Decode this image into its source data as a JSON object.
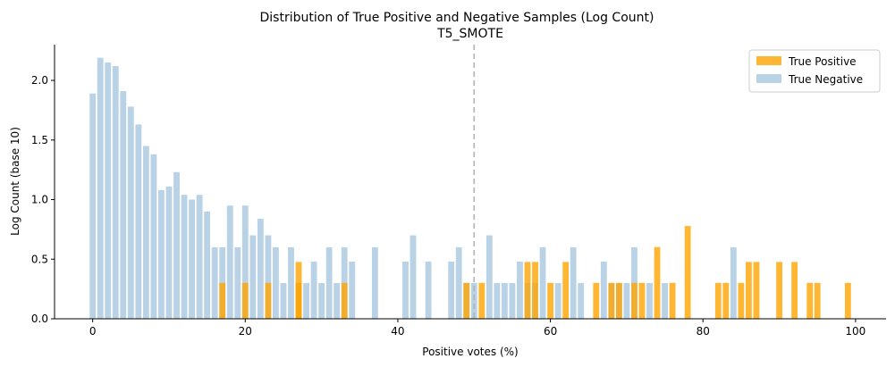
{
  "chart_data": {
    "type": "bar",
    "title": "Distribution of True Positive and Negative Samples (Log Count)",
    "subtitle": "T5_SMOTE",
    "xlabel": "Positive votes (%)",
    "ylabel": "Log Count (base 10)",
    "xlim": [
      -5,
      104
    ],
    "ylim": [
      0,
      2.3
    ],
    "xticks": [
      0,
      20,
      40,
      60,
      80,
      100
    ],
    "yticks": [
      0.0,
      0.5,
      1.0,
      1.5,
      2.0
    ],
    "ytick_labels": [
      "0.0",
      "0.5",
      "1.0",
      "1.5",
      "2.0"
    ],
    "threshold_x": 50,
    "legend_position": "top-right",
    "series": [
      {
        "name": "True Positive",
        "color": "#FFA500",
        "alpha": 0.8,
        "points": [
          {
            "x": 17,
            "y": 0.301
          },
          {
            "x": 20,
            "y": 0.301
          },
          {
            "x": 23,
            "y": 0.301
          },
          {
            "x": 27,
            "y": 0.477
          },
          {
            "x": 27,
            "y": 0.301
          },
          {
            "x": 33,
            "y": 0.301
          },
          {
            "x": 49,
            "y": 0.301
          },
          {
            "x": 51,
            "y": 0.301
          },
          {
            "x": 57,
            "y": 0.477
          },
          {
            "x": 58,
            "y": 0.477
          },
          {
            "x": 60,
            "y": 0.301
          },
          {
            "x": 62,
            "y": 0.477
          },
          {
            "x": 66,
            "y": 0.301
          },
          {
            "x": 68,
            "y": 0.301
          },
          {
            "x": 69,
            "y": 0.301
          },
          {
            "x": 71,
            "y": 0.301
          },
          {
            "x": 72,
            "y": 0.301
          },
          {
            "x": 74,
            "y": 0.602
          },
          {
            "x": 76,
            "y": 0.301
          },
          {
            "x": 78,
            "y": 0.778
          },
          {
            "x": 82,
            "y": 0.301
          },
          {
            "x": 83,
            "y": 0.301
          },
          {
            "x": 85,
            "y": 0.301
          },
          {
            "x": 86,
            "y": 0.477
          },
          {
            "x": 87,
            "y": 0.477
          },
          {
            "x": 90,
            "y": 0.477
          },
          {
            "x": 92,
            "y": 0.477
          },
          {
            "x": 94,
            "y": 0.301
          },
          {
            "x": 95,
            "y": 0.301
          },
          {
            "x": 99,
            "y": 0.301
          }
        ]
      },
      {
        "name": "True Negative",
        "color": "#A7C7E0",
        "alpha": 0.8,
        "points": [
          {
            "x": 0,
            "y": 1.89
          },
          {
            "x": 1,
            "y": 2.19
          },
          {
            "x": 2,
            "y": 2.15
          },
          {
            "x": 3,
            "y": 2.12
          },
          {
            "x": 4,
            "y": 1.91
          },
          {
            "x": 5,
            "y": 1.78
          },
          {
            "x": 6,
            "y": 1.63
          },
          {
            "x": 7,
            "y": 1.45
          },
          {
            "x": 8,
            "y": 1.38
          },
          {
            "x": 9,
            "y": 1.08
          },
          {
            "x": 10,
            "y": 1.11
          },
          {
            "x": 11,
            "y": 1.23
          },
          {
            "x": 12,
            "y": 1.04
          },
          {
            "x": 13,
            "y": 1.0
          },
          {
            "x": 14,
            "y": 1.04
          },
          {
            "x": 15,
            "y": 0.9
          },
          {
            "x": 16,
            "y": 0.6
          },
          {
            "x": 17,
            "y": 0.6
          },
          {
            "x": 18,
            "y": 0.95
          },
          {
            "x": 19,
            "y": 0.6
          },
          {
            "x": 20,
            "y": 0.95
          },
          {
            "x": 21,
            "y": 0.7
          },
          {
            "x": 22,
            "y": 0.84
          },
          {
            "x": 23,
            "y": 0.7
          },
          {
            "x": 24,
            "y": 0.6
          },
          {
            "x": 25,
            "y": 0.3
          },
          {
            "x": 26,
            "y": 0.6
          },
          {
            "x": 27,
            "y": 0.3
          },
          {
            "x": 28,
            "y": 0.3
          },
          {
            "x": 29,
            "y": 0.48
          },
          {
            "x": 30,
            "y": 0.3
          },
          {
            "x": 31,
            "y": 0.6
          },
          {
            "x": 32,
            "y": 0.3
          },
          {
            "x": 33,
            "y": 0.6
          },
          {
            "x": 34,
            "y": 0.48
          },
          {
            "x": 37,
            "y": 0.6
          },
          {
            "x": 41,
            "y": 0.48
          },
          {
            "x": 42,
            "y": 0.7
          },
          {
            "x": 44,
            "y": 0.48
          },
          {
            "x": 47,
            "y": 0.48
          },
          {
            "x": 48,
            "y": 0.6
          },
          {
            "x": 49,
            "y": 0.3
          },
          {
            "x": 50,
            "y": 0.3
          },
          {
            "x": 52,
            "y": 0.7
          },
          {
            "x": 53,
            "y": 0.3
          },
          {
            "x": 54,
            "y": 0.3
          },
          {
            "x": 55,
            "y": 0.3
          },
          {
            "x": 56,
            "y": 0.48
          },
          {
            "x": 57,
            "y": 0.3
          },
          {
            "x": 58,
            "y": 0.3
          },
          {
            "x": 59,
            "y": 0.6
          },
          {
            "x": 61,
            "y": 0.3
          },
          {
            "x": 63,
            "y": 0.6
          },
          {
            "x": 64,
            "y": 0.3
          },
          {
            "x": 67,
            "y": 0.48
          },
          {
            "x": 68,
            "y": 0.3
          },
          {
            "x": 69,
            "y": 0.3
          },
          {
            "x": 70,
            "y": 0.3
          },
          {
            "x": 71,
            "y": 0.6
          },
          {
            "x": 73,
            "y": 0.3
          },
          {
            "x": 75,
            "y": 0.3
          },
          {
            "x": 84,
            "y": 0.6
          }
        ]
      }
    ]
  }
}
